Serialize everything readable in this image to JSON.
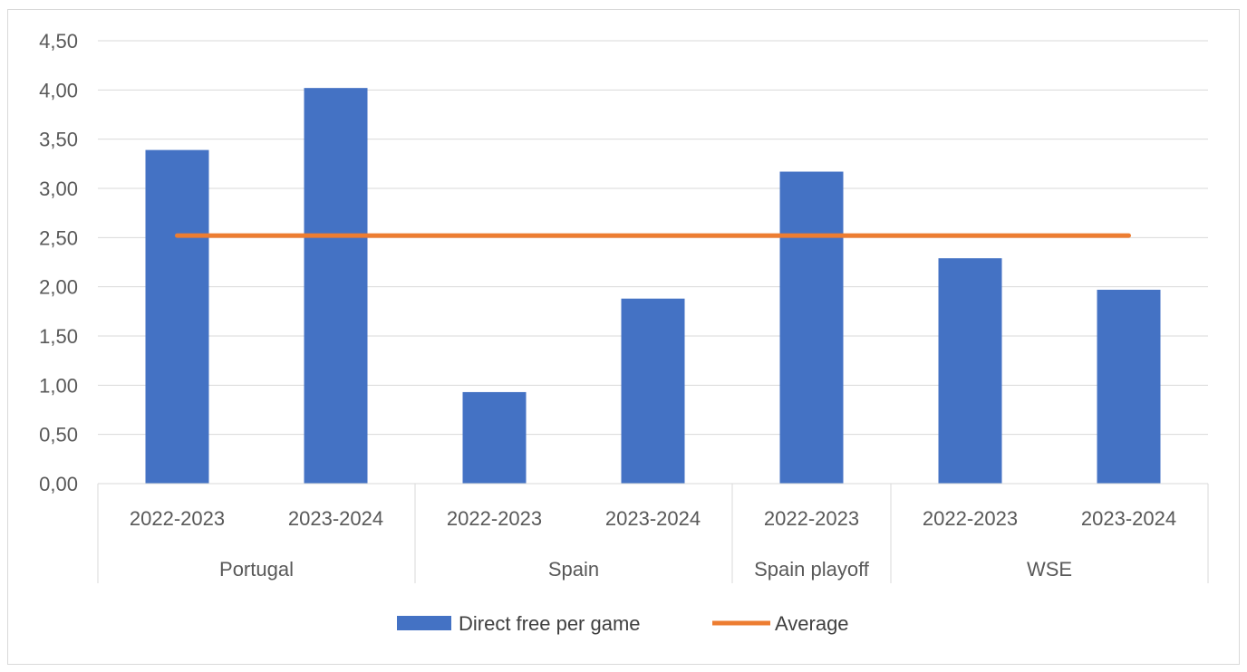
{
  "chart_data": {
    "type": "bar",
    "title": "",
    "xlabel": "",
    "ylabel": "",
    "ylim": [
      0,
      4.5
    ],
    "yticks": [
      "0,00",
      "0,50",
      "1,00",
      "1,50",
      "2,00",
      "2,50",
      "3,00",
      "3,50",
      "4,00",
      "4,50"
    ],
    "grid": true,
    "legend_position": "bottom",
    "groups": [
      {
        "label": "Portugal",
        "categories": [
          "2022-2023",
          "2023-2024"
        ]
      },
      {
        "label": "Spain",
        "categories": [
          "2022-2023",
          "2023-2024"
        ]
      },
      {
        "label": "Spain playoff",
        "categories": [
          "2022-2023"
        ]
      },
      {
        "label": "WSE",
        "categories": [
          "2022-2023",
          "2023-2024"
        ]
      }
    ],
    "series": [
      {
        "name": "Direct free per game",
        "type": "bar",
        "color": "#4472c4",
        "values": [
          3.39,
          4.02,
          0.93,
          1.88,
          3.17,
          2.29,
          1.97
        ]
      },
      {
        "name": "Average",
        "type": "line",
        "color": "#ed7d31",
        "values": [
          2.52,
          2.52,
          2.52,
          2.52,
          2.52,
          2.52,
          2.52
        ]
      }
    ]
  }
}
